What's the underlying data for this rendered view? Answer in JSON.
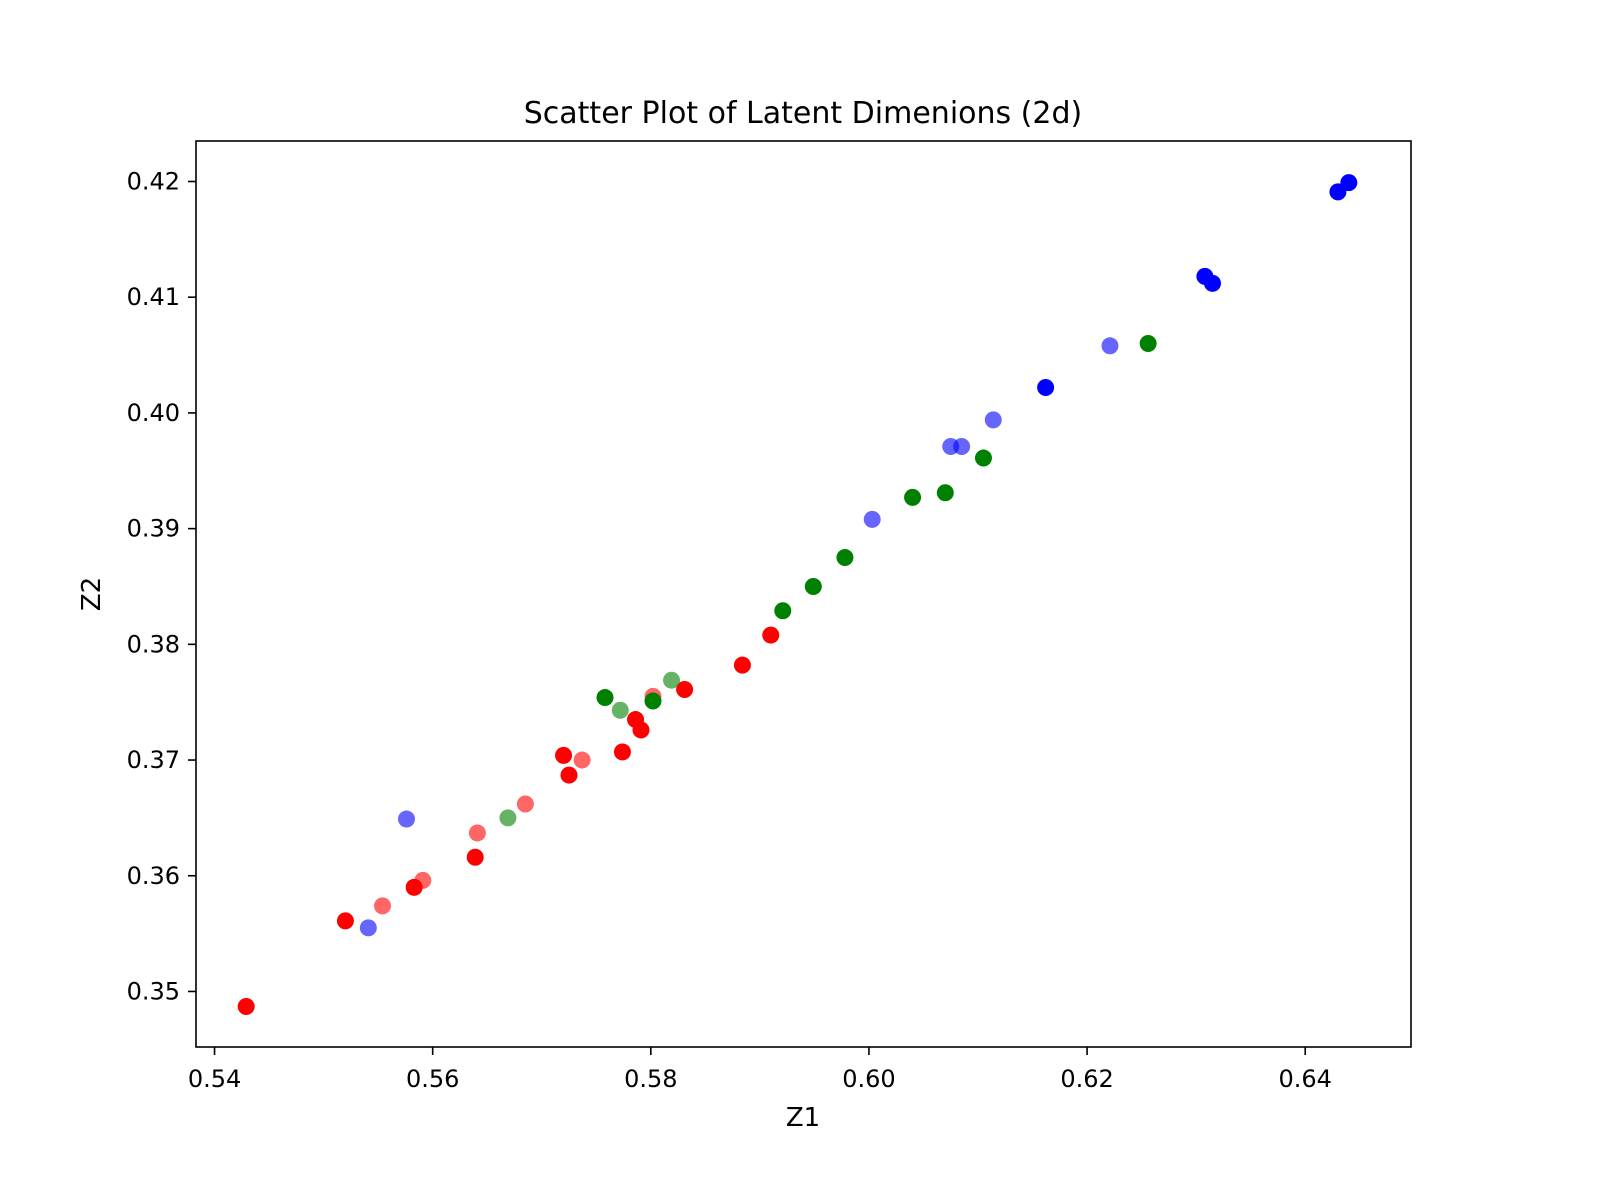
{
  "chart_data": {
    "type": "scatter",
    "title": "Scatter Plot of Latent Dimenions (2d)",
    "xlabel": "Z1",
    "ylabel": "Z2",
    "xlim": [
      0.5383,
      0.6497
    ],
    "ylim": [
      0.3452,
      0.4235
    ],
    "xticks": [
      0.54,
      0.56,
      0.58,
      0.6,
      0.62,
      0.64
    ],
    "xtick_labels": [
      "0.54",
      "0.56",
      "0.58",
      "0.60",
      "0.62",
      "0.64"
    ],
    "yticks": [
      0.35,
      0.36,
      0.37,
      0.38,
      0.39,
      0.4,
      0.41,
      0.42
    ],
    "ytick_labels": [
      "0.35",
      "0.36",
      "0.37",
      "0.38",
      "0.39",
      "0.40",
      "0.41",
      "0.42"
    ],
    "grid": false,
    "legend": "none",
    "series": [
      {
        "color": "#ff0000",
        "points": [
          {
            "x": 0.5429,
            "y": 0.3487,
            "a": 1.0
          },
          {
            "x": 0.552,
            "y": 0.3561,
            "a": 1.0
          },
          {
            "x": 0.5554,
            "y": 0.3574,
            "a": 0.6
          },
          {
            "x": 0.5583,
            "y": 0.359,
            "a": 1.0
          },
          {
            "x": 0.5591,
            "y": 0.3596,
            "a": 0.6
          },
          {
            "x": 0.5639,
            "y": 0.3616,
            "a": 1.0
          },
          {
            "x": 0.5641,
            "y": 0.3637,
            "a": 0.6
          },
          {
            "x": 0.5685,
            "y": 0.3662,
            "a": 0.6
          },
          {
            "x": 0.572,
            "y": 0.3704,
            "a": 1.0
          },
          {
            "x": 0.5725,
            "y": 0.3687,
            "a": 1.0
          },
          {
            "x": 0.5737,
            "y": 0.37,
            "a": 0.6
          },
          {
            "x": 0.5774,
            "y": 0.3707,
            "a": 1.0
          },
          {
            "x": 0.5786,
            "y": 0.3735,
            "a": 1.0
          },
          {
            "x": 0.5791,
            "y": 0.3726,
            "a": 1.0
          },
          {
            "x": 0.5802,
            "y": 0.3755,
            "a": 0.6
          },
          {
            "x": 0.5831,
            "y": 0.3761,
            "a": 1.0
          },
          {
            "x": 0.5884,
            "y": 0.3782,
            "a": 1.0
          },
          {
            "x": 0.591,
            "y": 0.3808,
            "a": 1.0
          }
        ]
      },
      {
        "color": "#008000",
        "points": [
          {
            "x": 0.5669,
            "y": 0.365,
            "a": 0.6
          },
          {
            "x": 0.5758,
            "y": 0.3754,
            "a": 1.0
          },
          {
            "x": 0.5772,
            "y": 0.3743,
            "a": 0.6
          },
          {
            "x": 0.5802,
            "y": 0.3751,
            "a": 1.0
          },
          {
            "x": 0.5819,
            "y": 0.3769,
            "a": 0.6
          },
          {
            "x": 0.5921,
            "y": 0.3829,
            "a": 1.0
          },
          {
            "x": 0.5949,
            "y": 0.385,
            "a": 1.0
          },
          {
            "x": 0.5978,
            "y": 0.3875,
            "a": 1.0
          },
          {
            "x": 0.604,
            "y": 0.3927,
            "a": 1.0
          },
          {
            "x": 0.607,
            "y": 0.3931,
            "a": 1.0
          },
          {
            "x": 0.6105,
            "y": 0.3961,
            "a": 1.0
          },
          {
            "x": 0.6256,
            "y": 0.406,
            "a": 1.0
          }
        ]
      },
      {
        "color": "#0000ff",
        "points": [
          {
            "x": 0.5541,
            "y": 0.3555,
            "a": 0.6
          },
          {
            "x": 0.5576,
            "y": 0.3649,
            "a": 0.6
          },
          {
            "x": 0.6003,
            "y": 0.3908,
            "a": 0.6
          },
          {
            "x": 0.6075,
            "y": 0.3971,
            "a": 0.6
          },
          {
            "x": 0.6085,
            "y": 0.3971,
            "a": 0.6
          },
          {
            "x": 0.6114,
            "y": 0.3994,
            "a": 0.6
          },
          {
            "x": 0.6162,
            "y": 0.4022,
            "a": 1.0
          },
          {
            "x": 0.6221,
            "y": 0.4058,
            "a": 0.6
          },
          {
            "x": 0.6308,
            "y": 0.4118,
            "a": 1.0
          },
          {
            "x": 0.6315,
            "y": 0.4112,
            "a": 1.0
          },
          {
            "x": 0.643,
            "y": 0.4191,
            "a": 1.0
          },
          {
            "x": 0.644,
            "y": 0.4199,
            "a": 1.0
          }
        ]
      }
    ]
  }
}
